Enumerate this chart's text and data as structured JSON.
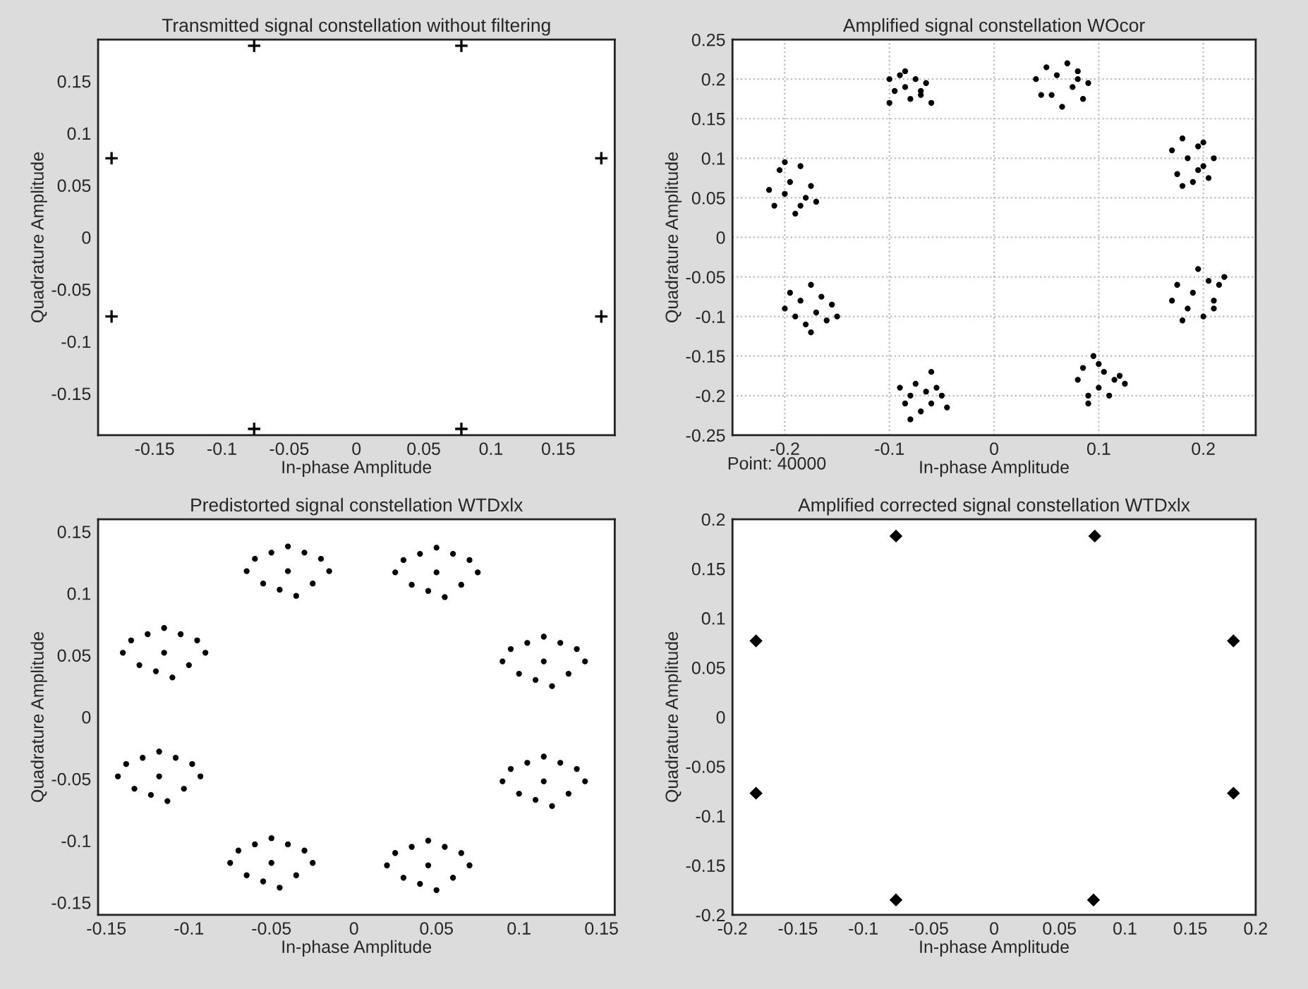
{
  "chart_data": [
    {
      "type": "scatter",
      "title": "Transmitted signal constellation without filtering",
      "xlabel": "In-phase Amplitude",
      "ylabel": "Quadrature Amplitude",
      "xlim": [
        -0.192,
        0.192
      ],
      "ylim": [
        -0.19,
        0.19
      ],
      "xticks": [
        -0.15,
        -0.1,
        -0.05,
        0,
        0.05,
        0.1,
        0.15
      ],
      "yticks": [
        -0.15,
        -0.1,
        -0.05,
        0,
        0.05,
        0.1,
        0.15
      ],
      "grid": false,
      "marker": "cross",
      "series": [
        {
          "color": "#000000",
          "x": [
            -0.076,
            0.078,
            0.182,
            0.182,
            0.078,
            -0.076,
            -0.182,
            -0.182
          ],
          "values": [
            0.184,
            0.184,
            0.076,
            -0.076,
            -0.184,
            -0.184,
            -0.076,
            0.076
          ]
        }
      ]
    },
    {
      "type": "scatter",
      "title": "Amplified signal constellation WOcor",
      "xlabel": "In-phase Amplitude",
      "ylabel": "Quadrature Amplitude",
      "xlim": [
        -0.25,
        0.25
      ],
      "ylim": [
        -0.25,
        0.25
      ],
      "xticks": [
        -0.2,
        -0.1,
        0,
        0.1,
        0.2
      ],
      "yticks": [
        -0.25,
        -0.2,
        -0.15,
        -0.1,
        -0.05,
        0,
        0.05,
        0.1,
        0.15,
        0.2,
        0.25
      ],
      "grid": true,
      "marker": "circle",
      "annotations": [
        "Point: 40000"
      ],
      "series": [
        {
          "color": "#000000",
          "x": [
            -0.1,
            -0.095,
            -0.09,
            -0.085,
            -0.08,
            -0.075,
            -0.07,
            -0.065,
            -0.06,
            -0.1,
            -0.085,
            -0.07,
            0.04,
            0.05,
            0.055,
            0.06,
            0.07,
            0.075,
            0.08,
            0.085,
            0.09,
            0.065,
            0.045,
            0.08,
            0.17,
            0.175,
            0.18,
            0.185,
            0.19,
            0.195,
            0.2,
            0.205,
            0.21,
            0.18,
            0.195,
            0.2,
            0.17,
            0.175,
            0.185,
            0.19,
            0.2,
            0.205,
            0.21,
            0.215,
            0.22,
            0.18,
            0.195,
            0.21,
            0.08,
            0.085,
            0.09,
            0.095,
            0.1,
            0.105,
            0.11,
            0.115,
            0.12,
            0.09,
            0.1,
            0.125,
            -0.09,
            -0.085,
            -0.08,
            -0.075,
            -0.07,
            -0.065,
            -0.06,
            -0.055,
            -0.05,
            -0.045,
            -0.08,
            -0.06,
            -0.2,
            -0.195,
            -0.19,
            -0.185,
            -0.18,
            -0.175,
            -0.17,
            -0.165,
            -0.16,
            -0.155,
            -0.15,
            -0.175,
            -0.215,
            -0.21,
            -0.205,
            -0.2,
            -0.195,
            -0.19,
            -0.185,
            -0.18,
            -0.175,
            -0.17,
            -0.2,
            -0.185
          ],
          "values": [
            0.2,
            0.185,
            0.205,
            0.19,
            0.175,
            0.2,
            0.18,
            0.195,
            0.17,
            0.17,
            0.21,
            0.185,
            0.2,
            0.215,
            0.18,
            0.205,
            0.22,
            0.19,
            0.21,
            0.175,
            0.195,
            0.165,
            0.18,
            0.2,
            0.11,
            0.08,
            0.125,
            0.1,
            0.07,
            0.115,
            0.09,
            0.075,
            0.1,
            0.065,
            0.085,
            0.12,
            -0.08,
            -0.06,
            -0.09,
            -0.07,
            -0.1,
            -0.055,
            -0.08,
            -0.06,
            -0.05,
            -0.105,
            -0.04,
            -0.09,
            -0.18,
            -0.165,
            -0.2,
            -0.15,
            -0.19,
            -0.17,
            -0.2,
            -0.18,
            -0.175,
            -0.21,
            -0.16,
            -0.185,
            -0.19,
            -0.21,
            -0.2,
            -0.185,
            -0.22,
            -0.195,
            -0.21,
            -0.19,
            -0.2,
            -0.215,
            -0.23,
            -0.17,
            -0.09,
            -0.07,
            -0.1,
            -0.08,
            -0.11,
            -0.06,
            -0.095,
            -0.075,
            -0.105,
            -0.085,
            -0.1,
            -0.12,
            0.06,
            0.04,
            0.085,
            0.055,
            0.07,
            0.03,
            0.09,
            0.05,
            0.065,
            0.045,
            0.095,
            0.04
          ]
        }
      ]
    },
    {
      "type": "scatter",
      "title": "Predistorted signal constellation WTDxlx",
      "xlabel": "In-phase Amplitude",
      "ylabel": "Quadrature Amplitude",
      "xlim": [
        -0.155,
        0.158
      ],
      "ylim": [
        -0.16,
        0.16
      ],
      "xticks": [
        -0.15,
        -0.1,
        -0.05,
        0,
        0.05,
        0.1,
        0.15
      ],
      "yticks": [
        -0.15,
        -0.1,
        -0.05,
        0,
        0.05,
        0.1,
        0.15
      ],
      "grid": false,
      "marker": "circle",
      "series": [
        {
          "color": "#000000",
          "x": [
            -0.065,
            -0.06,
            -0.055,
            -0.05,
            -0.045,
            -0.04,
            -0.035,
            -0.03,
            -0.025,
            -0.02,
            -0.015,
            -0.04,
            0.025,
            0.03,
            0.035,
            0.04,
            0.045,
            0.05,
            0.055,
            0.06,
            0.065,
            0.07,
            0.075,
            0.05,
            0.09,
            0.095,
            0.1,
            0.105,
            0.11,
            0.115,
            0.12,
            0.125,
            0.13,
            0.135,
            0.14,
            0.115,
            0.09,
            0.095,
            0.1,
            0.105,
            0.11,
            0.115,
            0.12,
            0.125,
            0.13,
            0.135,
            0.14,
            0.115,
            0.02,
            0.025,
            0.03,
            0.035,
            0.04,
            0.045,
            0.05,
            0.055,
            0.06,
            0.065,
            0.07,
            0.045,
            -0.075,
            -0.07,
            -0.065,
            -0.06,
            -0.055,
            -0.05,
            -0.045,
            -0.04,
            -0.035,
            -0.03,
            -0.025,
            -0.05,
            -0.143,
            -0.138,
            -0.133,
            -0.128,
            -0.123,
            -0.118,
            -0.113,
            -0.108,
            -0.103,
            -0.098,
            -0.093,
            -0.118,
            -0.14,
            -0.135,
            -0.13,
            -0.125,
            -0.12,
            -0.115,
            -0.11,
            -0.105,
            -0.1,
            -0.095,
            -0.09,
            -0.115
          ],
          "values": [
            0.118,
            0.128,
            0.108,
            0.133,
            0.103,
            0.138,
            0.098,
            0.133,
            0.108,
            0.128,
            0.118,
            0.118,
            0.117,
            0.127,
            0.107,
            0.132,
            0.102,
            0.137,
            0.097,
            0.132,
            0.107,
            0.127,
            0.117,
            0.117,
            0.045,
            0.055,
            0.035,
            0.06,
            0.03,
            0.065,
            0.025,
            0.06,
            0.035,
            0.055,
            0.045,
            0.045,
            -0.052,
            -0.042,
            -0.062,
            -0.037,
            -0.067,
            -0.032,
            -0.072,
            -0.037,
            -0.062,
            -0.042,
            -0.052,
            -0.052,
            -0.12,
            -0.11,
            -0.13,
            -0.105,
            -0.135,
            -0.1,
            -0.14,
            -0.105,
            -0.13,
            -0.11,
            -0.12,
            -0.12,
            -0.118,
            -0.108,
            -0.128,
            -0.103,
            -0.133,
            -0.098,
            -0.138,
            -0.103,
            -0.128,
            -0.108,
            -0.118,
            -0.118,
            -0.048,
            -0.038,
            -0.058,
            -0.033,
            -0.063,
            -0.028,
            -0.068,
            -0.033,
            -0.058,
            -0.038,
            -0.048,
            -0.048,
            0.052,
            0.062,
            0.042,
            0.067,
            0.037,
            0.072,
            0.032,
            0.067,
            0.042,
            0.062,
            0.052,
            0.052
          ]
        }
      ]
    },
    {
      "type": "scatter",
      "title": "Amplified corrected signal constellation WTDxlx",
      "xlabel": "In-phase Amplitude",
      "ylabel": "Quadrature Amplitude",
      "xlim": [
        -0.2,
        0.2
      ],
      "ylim": [
        -0.2,
        0.2
      ],
      "xticks": [
        -0.2,
        -0.15,
        -0.1,
        -0.05,
        0,
        0.05,
        0.1,
        0.15,
        0.2
      ],
      "yticks": [
        -0.2,
        -0.15,
        -0.1,
        -0.05,
        0,
        0.05,
        0.1,
        0.15,
        0.2
      ],
      "grid": false,
      "marker": "diamond",
      "series": [
        {
          "color": "#000000",
          "x": [
            -0.075,
            0.077,
            0.183,
            0.183,
            0.076,
            -0.075,
            -0.182,
            -0.182
          ],
          "values": [
            0.183,
            0.183,
            0.077,
            -0.077,
            -0.185,
            -0.185,
            -0.077,
            0.077
          ]
        }
      ]
    }
  ]
}
